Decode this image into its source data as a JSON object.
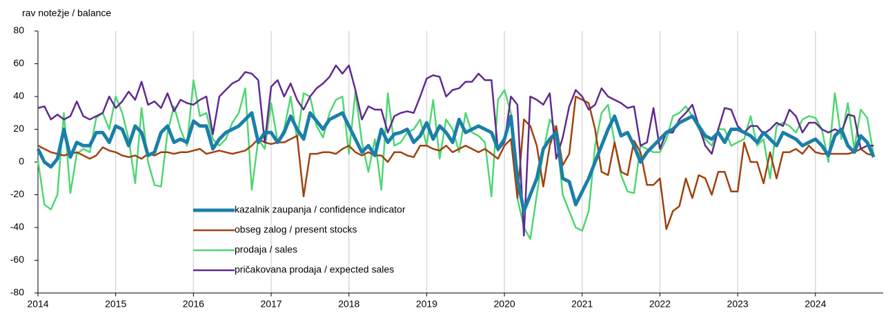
{
  "chart_data": {
    "type": "line",
    "y_label": "rav notežje / balance",
    "categories": [
      "2014",
      null,
      null,
      null,
      null,
      null,
      null,
      null,
      null,
      null,
      null,
      null,
      "2015",
      null,
      null,
      null,
      null,
      null,
      null,
      null,
      null,
      null,
      null,
      null,
      "2016",
      null,
      null,
      null,
      null,
      null,
      null,
      null,
      null,
      null,
      null,
      null,
      "2017",
      null,
      null,
      null,
      null,
      null,
      null,
      null,
      null,
      null,
      null,
      null,
      "2018",
      null,
      null,
      null,
      null,
      null,
      null,
      null,
      null,
      null,
      null,
      null,
      "2019",
      null,
      null,
      null,
      null,
      null,
      null,
      null,
      null,
      null,
      null,
      null,
      "2020",
      null,
      null,
      null,
      null,
      null,
      null,
      null,
      null,
      null,
      null,
      null,
      "2021",
      null,
      null,
      null,
      null,
      null,
      null,
      null,
      null,
      null,
      null,
      null,
      "2022",
      null,
      null,
      null,
      null,
      null,
      null,
      null,
      null,
      null,
      null,
      null,
      "2023",
      null,
      null,
      null,
      null,
      null,
      null,
      null,
      null,
      null,
      null,
      null,
      "2024",
      null,
      null,
      null,
      null,
      null,
      null,
      null,
      null,
      null
    ],
    "series": [
      {
        "name": "kazalnik zaupanja / confidence indicator",
        "color": "#1b7fa8",
        "width": 5,
        "values": [
          8,
          0,
          -3,
          2,
          20,
          3,
          12,
          10,
          10,
          18,
          18,
          12,
          22,
          20,
          10,
          22,
          18,
          4,
          6,
          18,
          22,
          12,
          14,
          12,
          25,
          22,
          22,
          8,
          14,
          18,
          20,
          22,
          26,
          30,
          12,
          18,
          18,
          12,
          18,
          28,
          20,
          14,
          30,
          25,
          20,
          26,
          28,
          30,
          22,
          14,
          6,
          10,
          4,
          20,
          12,
          17,
          18,
          20,
          12,
          16,
          24,
          14,
          22,
          18,
          12,
          26,
          18,
          20,
          22,
          20,
          18,
          8,
          14,
          28,
          -10,
          -30,
          -20,
          -10,
          8,
          14,
          18,
          -10,
          -12,
          -26,
          -18,
          -10,
          0,
          10,
          20,
          28,
          16,
          18,
          10,
          0,
          6,
          10,
          14,
          18,
          20,
          24,
          26,
          28,
          22,
          16,
          14,
          18,
          12,
          20,
          20,
          18,
          16,
          12,
          18,
          14,
          10,
          18,
          16,
          14,
          10,
          12,
          14,
          10,
          4,
          16,
          20,
          10,
          6,
          16,
          12,
          3
        ]
      },
      {
        "name": "obseg zalog / present stocks",
        "color": "#a0410d",
        "width": 2.5,
        "values": [
          10,
          8,
          6,
          5,
          4,
          5,
          6,
          4,
          2,
          4,
          9,
          7,
          6,
          4,
          3,
          4,
          2,
          5,
          4,
          6,
          6,
          5,
          6,
          6,
          7,
          8,
          5,
          6,
          7,
          6,
          5,
          6,
          7,
          10,
          14,
          12,
          11,
          12,
          12,
          14,
          16,
          -21,
          5,
          5,
          6,
          6,
          5,
          8,
          10,
          6,
          4,
          6,
          4,
          4,
          0,
          6,
          6,
          4,
          3,
          10,
          10,
          8,
          7,
          10,
          6,
          8,
          10,
          8,
          6,
          8,
          5,
          2,
          10,
          14,
          -22,
          26,
          22,
          10,
          -15,
          10,
          22,
          -2,
          5,
          40,
          38,
          36,
          20,
          -6,
          -8,
          12,
          -6,
          -8,
          13,
          6,
          -14,
          -14,
          -10,
          -41,
          -30,
          -27,
          -10,
          -22,
          -8,
          -10,
          -20,
          -6,
          -6,
          -18,
          -18,
          12,
          0,
          0,
          -13,
          6,
          -10,
          6,
          6,
          8,
          5,
          10,
          6,
          5,
          5,
          5,
          5,
          5,
          6,
          8,
          5,
          4
        ]
      },
      {
        "name": "prodaja / sales",
        "color": "#4fd672",
        "width": 2.5,
        "values": [
          1,
          -26,
          -29,
          -20,
          30,
          -19,
          5,
          8,
          6,
          27,
          30,
          20,
          40,
          30,
          14,
          -13,
          33,
          0,
          -14,
          -15,
          18,
          34,
          20,
          10,
          50,
          28,
          30,
          14,
          10,
          14,
          24,
          30,
          45,
          -17,
          14,
          8,
          36,
          12,
          20,
          40,
          14,
          42,
          40,
          22,
          15,
          30,
          38,
          40,
          5,
          43,
          12,
          -6,
          14,
          -17,
          42,
          10,
          12,
          18,
          20,
          26,
          10,
          38,
          2,
          26,
          20,
          6,
          30,
          18,
          16,
          12,
          -21,
          38,
          44,
          30,
          -22,
          -40,
          -47,
          -20,
          6,
          26,
          20,
          -20,
          -30,
          -40,
          -42,
          -30,
          10,
          30,
          35,
          12,
          -8,
          -18,
          -19,
          10,
          8,
          6,
          6,
          14,
          28,
          30,
          34,
          28,
          20,
          14,
          10,
          20,
          20,
          10,
          12,
          14,
          28,
          10,
          14,
          -10,
          22,
          24,
          22,
          18,
          26,
          28,
          27,
          20,
          0,
          42,
          14,
          36,
          8,
          32,
          27,
          4
        ]
      },
      {
        "name": "pričakovana prodaja / expected sales",
        "color": "#5f2a8f",
        "width": 2.5,
        "values": [
          33,
          34,
          26,
          29,
          26,
          28,
          37,
          28,
          26,
          28,
          30,
          40,
          33,
          37,
          43,
          38,
          49,
          35,
          37,
          33,
          42,
          31,
          38,
          36,
          35,
          38,
          40,
          17,
          40,
          44,
          48,
          50,
          55,
          54,
          50,
          12,
          46,
          50,
          40,
          48,
          38,
          32,
          40,
          45,
          48,
          52,
          59,
          54,
          59,
          44,
          26,
          34,
          32,
          32,
          18,
          28,
          30,
          31,
          30,
          40,
          51,
          53,
          52,
          40,
          44,
          45,
          49,
          49,
          54,
          50,
          50,
          7,
          12,
          40,
          35,
          -45,
          40,
          38,
          35,
          42,
          2,
          15,
          34,
          44,
          40,
          32,
          35,
          45,
          40,
          38,
          36,
          33,
          34,
          10,
          12,
          33,
          8,
          18,
          18,
          26,
          30,
          35,
          22,
          10,
          5,
          20,
          33,
          32,
          22,
          18,
          22,
          22,
          17,
          20,
          24,
          22,
          32,
          28,
          18,
          24,
          24,
          20,
          18,
          20,
          18,
          29,
          28,
          8,
          10,
          10
        ]
      }
    ],
    "ylim": [
      -80,
      80
    ],
    "yticks": [
      -80,
      -60,
      -40,
      -20,
      0,
      20,
      40,
      60,
      80
    ],
    "grid": true
  }
}
